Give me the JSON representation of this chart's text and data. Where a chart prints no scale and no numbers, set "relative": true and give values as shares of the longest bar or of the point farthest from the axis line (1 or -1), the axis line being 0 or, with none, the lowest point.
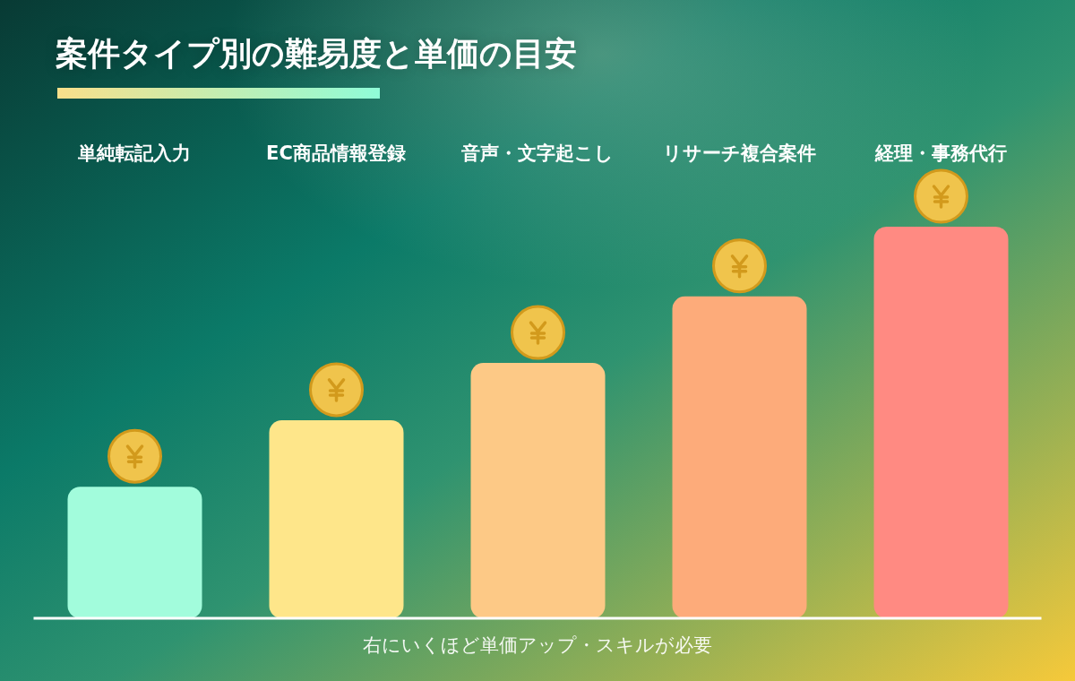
{
  "chart_data": {
    "type": "bar",
    "title": "案件タイプ別の難易度と単価の目安",
    "categories": [
      "単純転記入力",
      "EC商品情報登録",
      "音声・文字起こし",
      "リサーチ複合案件",
      "経理・事務代行"
    ],
    "values": [
      0.336,
      0.506,
      0.652,
      0.822,
      1
    ],
    "colors": [
      "#a2fcdc",
      "#fee68a",
      "#fdc986",
      "#fdab7a",
      "#ff8a82"
    ],
    "relative": true,
    "annotations": [
      "右にいくほど単価アップ・スキルが必要"
    ]
  }
}
